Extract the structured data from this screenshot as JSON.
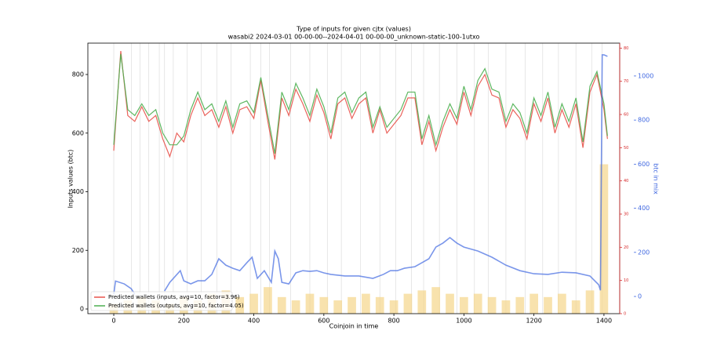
{
  "chart_data": {
    "type": "line",
    "title": "Type of inputs for given cjtx (values)",
    "subtitle": "wasabi2 2024-03-01 00-00-00--2024-04-01 00-00-00_unknown-static-100-1utxo",
    "xlabel": "Coinjoin in time",
    "ylabel": "Inputs values (btc)",
    "y3label": "btc in mix",
    "xlim": [
      -74,
      1445
    ],
    "ylim": [
      -16,
      907
    ],
    "y2lim": [
      0,
      81.5
    ],
    "y3lim": [
      -78,
      1149
    ],
    "xticks": [
      0,
      200,
      400,
      600,
      800,
      1000,
      1200,
      1400
    ],
    "yticks": [
      0,
      200,
      400,
      600,
      800
    ],
    "y2ticks": [
      0,
      10,
      20,
      30,
      40,
      50,
      60,
      70,
      80
    ],
    "y3ticks": [
      0,
      200,
      400,
      600,
      800,
      1000
    ],
    "y2color": "#d62728",
    "y3color": "#4169e1",
    "legend": "lower left",
    "day_lines": [
      0,
      50,
      75,
      100,
      130,
      145,
      170,
      210,
      250,
      295,
      335,
      390,
      420,
      445,
      505,
      560,
      610,
      650,
      705,
      760,
      805,
      850,
      885,
      930,
      980,
      1030,
      1070,
      1120,
      1175,
      1225,
      1270,
      1320,
      1365,
      1395
    ],
    "x": [
      0,
      20,
      40,
      60,
      80,
      100,
      120,
      140,
      160,
      180,
      200,
      220,
      240,
      260,
      280,
      300,
      320,
      340,
      360,
      380,
      400,
      420,
      440,
      460,
      480,
      500,
      520,
      540,
      560,
      580,
      600,
      620,
      640,
      660,
      680,
      700,
      720,
      740,
      760,
      780,
      800,
      820,
      840,
      860,
      880,
      900,
      920,
      940,
      960,
      980,
      1000,
      1020,
      1040,
      1060,
      1080,
      1100,
      1120,
      1140,
      1160,
      1180,
      1200,
      1220,
      1240,
      1260,
      1280,
      1300,
      1320,
      1340,
      1360,
      1380,
      1400,
      1410
    ],
    "series": [
      {
        "name": "Predicted wallets (inputs, avg=10, factor=3.96)",
        "color": "#e8524a",
        "values": [
          540,
          880,
          660,
          640,
          690,
          640,
          660,
          580,
          520,
          600,
          570,
          660,
          720,
          660,
          680,
          620,
          690,
          600,
          680,
          690,
          650,
          780,
          640,
          510,
          720,
          660,
          750,
          700,
          640,
          730,
          670,
          580,
          700,
          720,
          650,
          700,
          720,
          600,
          680,
          600,
          630,
          660,
          720,
          720,
          560,
          640,
          540,
          620,
          680,
          630,
          740,
          660,
          760,
          800,
          730,
          720,
          620,
          680,
          650,
          580,
          700,
          640,
          720,
          600,
          680,
          620,
          700,
          550,
          740,
          800,
          680,
          580
        ]
      },
      {
        "name": "Predicted wallets (outputs, avg=10, factor=4.05)",
        "color": "#4caf50",
        "values": [
          560,
          870,
          680,
          660,
          700,
          660,
          680,
          600,
          560,
          560,
          590,
          680,
          740,
          680,
          700,
          640,
          710,
          620,
          700,
          710,
          670,
          790,
          660,
          530,
          740,
          680,
          770,
          720,
          660,
          750,
          690,
          600,
          720,
          740,
          670,
          720,
          740,
          620,
          690,
          620,
          650,
          680,
          740,
          740,
          580,
          660,
          560,
          640,
          700,
          650,
          760,
          680,
          780,
          820,
          750,
          740,
          640,
          700,
          670,
          600,
          720,
          660,
          740,
          620,
          700,
          640,
          720,
          570,
          760,
          810,
          700,
          590
        ]
      }
    ],
    "mix_x": [
      0,
      5,
      30,
      50,
      60,
      70,
      145,
      160,
      190,
      200,
      220,
      240,
      260,
      280,
      300,
      320,
      340,
      360,
      380,
      395,
      410,
      430,
      450,
      460,
      470,
      480,
      500,
      520,
      540,
      560,
      580,
      600,
      620,
      660,
      700,
      740,
      770,
      790,
      810,
      830,
      860,
      880,
      900,
      920,
      940,
      960,
      980,
      1000,
      1040,
      1080,
      1120,
      1160,
      1200,
      1240,
      1280,
      1320,
      1360,
      1385,
      1390,
      1395,
      1400,
      1410
    ],
    "mix_values": [
      10,
      70,
      57,
      35,
      10,
      null,
      25,
      64,
      117,
      71,
      57,
      71,
      71,
      100,
      171,
      142,
      128,
      117,
      153,
      178,
      82,
      117,
      64,
      206,
      171,
      64,
      57,
      107,
      117,
      114,
      117,
      107,
      100,
      93,
      93,
      82,
      100,
      117,
      117,
      128,
      135,
      153,
      171,
      224,
      242,
      267,
      242,
      224,
      206,
      178,
      142,
      117,
      103,
      100,
      110,
      107,
      93,
      53,
      28,
      1096,
      1096,
      1089
    ],
    "bar_color": "#f5d58a",
    "bar_x": [
      0,
      40,
      80,
      120,
      160,
      200,
      240,
      280,
      320,
      360,
      400,
      440,
      480,
      520,
      560,
      600,
      640,
      680,
      720,
      760,
      800,
      840,
      880,
      920,
      960,
      1000,
      1040,
      1080,
      1120,
      1160,
      1200,
      1240,
      1280,
      1320,
      1360,
      1400
    ],
    "bar_values": [
      3,
      4,
      5,
      4,
      3,
      5,
      4,
      6,
      7,
      5,
      6,
      8,
      5,
      4,
      6,
      5,
      4,
      5,
      6,
      5,
      4,
      6,
      7,
      8,
      6,
      5,
      6,
      5,
      4,
      5,
      6,
      5,
      6,
      4,
      7,
      45
    ]
  }
}
